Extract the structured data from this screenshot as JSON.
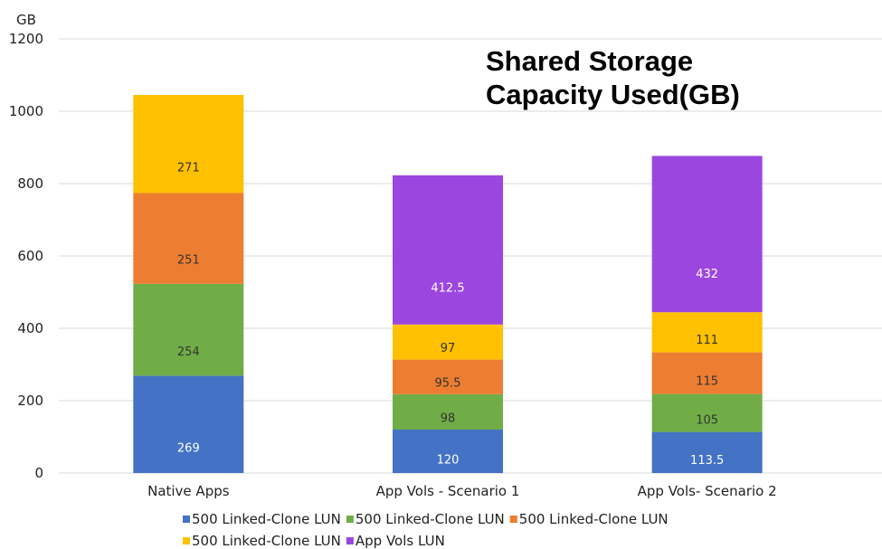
{
  "chart_data": {
    "type": "bar",
    "stacked": true,
    "title_lines": [
      "Shared Storage",
      "Capacity Used(GB)"
    ],
    "ylabel": "GB",
    "ylim": [
      0,
      1200
    ],
    "yticks": [
      0,
      200,
      400,
      600,
      800,
      1000,
      1200
    ],
    "grid": true,
    "legend_position": "bottom",
    "categories": [
      "Native Apps",
      "App Vols - Scenario 1",
      "App Vols- Scenario 2"
    ],
    "series": [
      {
        "name": "500 Linked-Clone LUN",
        "color": "#4472c4",
        "label_color": "#ffffff",
        "values": [
          269,
          120,
          113.5
        ],
        "labels": [
          "269",
          "120",
          "113.5"
        ]
      },
      {
        "name": "500 Linked-Clone LUN",
        "color": "#70ad47",
        "label_color": "#333333",
        "values": [
          254,
          98,
          105
        ],
        "labels": [
          "254",
          "98",
          "105"
        ]
      },
      {
        "name": "500 Linked-Clone LUN",
        "color": "#ed7d31",
        "label_color": "#333333",
        "values": [
          251,
          95.5,
          115
        ],
        "labels": [
          "251",
          "95.5",
          "115"
        ]
      },
      {
        "name": "500 Linked-Clone LUN",
        "color": "#ffc000",
        "label_color": "#333333",
        "values": [
          271,
          97,
          111
        ],
        "labels": [
          "271",
          "97",
          "111"
        ]
      },
      {
        "name": "App Vols LUN",
        "color": "#9c46e0",
        "label_color": "#ffffff",
        "values": [
          null,
          412.5,
          432
        ],
        "labels": [
          "",
          "412.5",
          "432"
        ]
      }
    ]
  }
}
